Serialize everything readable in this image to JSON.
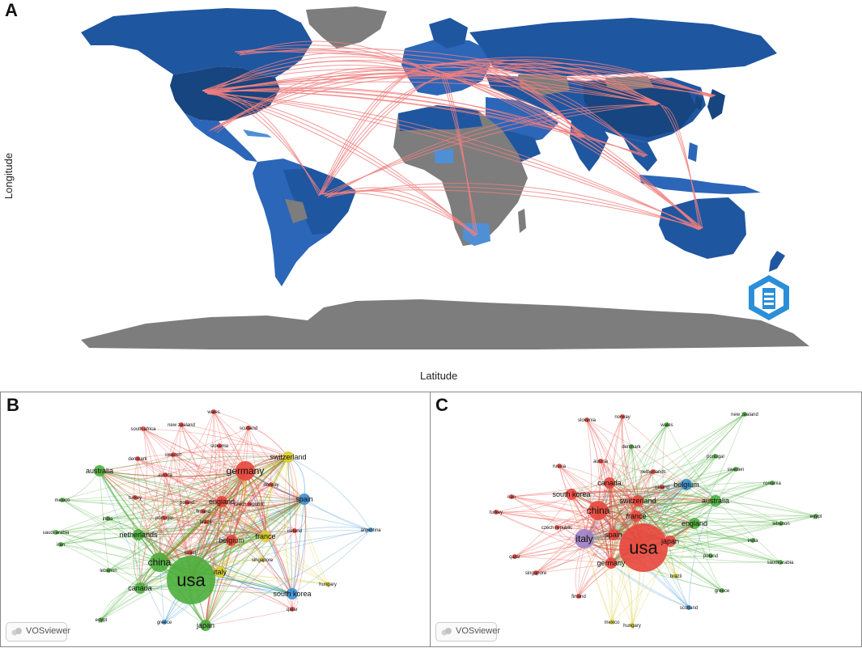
{
  "panels": {
    "a": {
      "letter": "A",
      "xlabel": "Latitude",
      "ylabel": "Longitude",
      "logo_text": "BIBLIOMETRIX"
    },
    "b": {
      "letter": "B",
      "badge": "VOSviewer",
      "nodes": [
        {
          "label": "usa",
          "cluster": "green",
          "size": "xl"
        },
        {
          "label": "china",
          "cluster": "green",
          "size": "m"
        },
        {
          "label": "germany",
          "cluster": "red",
          "size": "m"
        },
        {
          "label": "switzerland",
          "cluster": "yellow",
          "size": "s"
        },
        {
          "label": "england",
          "cluster": "red",
          "size": "s"
        },
        {
          "label": "spain",
          "cluster": "blue",
          "size": "s"
        },
        {
          "label": "france",
          "cluster": "yellow",
          "size": "s"
        },
        {
          "label": "netherlands",
          "cluster": "green",
          "size": "s"
        },
        {
          "label": "australia",
          "cluster": "green",
          "size": "s"
        },
        {
          "label": "canada",
          "cluster": "green",
          "size": "s"
        },
        {
          "label": "japan",
          "cluster": "green",
          "size": "s"
        },
        {
          "label": "italy",
          "cluster": "yellow",
          "size": "s"
        },
        {
          "label": "belgium",
          "cluster": "red",
          "size": "s"
        },
        {
          "label": "south korea",
          "cluster": "blue",
          "size": "s"
        },
        {
          "label": "argentina",
          "cluster": "blue",
          "size": "xs"
        },
        {
          "label": "hungary",
          "cluster": "yellow",
          "size": "xs"
        },
        {
          "label": "mexico",
          "cluster": "green",
          "size": "xs"
        },
        {
          "label": "saudi arabia",
          "cluster": "green",
          "size": "xs"
        },
        {
          "label": "egypt",
          "cluster": "green",
          "size": "xs"
        },
        {
          "label": "greece",
          "cluster": "blue",
          "size": "xs"
        },
        {
          "label": "india",
          "cluster": "green",
          "size": "xs"
        },
        {
          "label": "iran",
          "cluster": "green",
          "size": "xs"
        },
        {
          "label": "lebanon",
          "cluster": "green",
          "size": "xs"
        },
        {
          "label": "wales",
          "cluster": "red",
          "size": "xs"
        },
        {
          "label": "new zealand",
          "cluster": "red",
          "size": "xs"
        },
        {
          "label": "scotland",
          "cluster": "red",
          "size": "xs"
        },
        {
          "label": "south africa",
          "cluster": "red",
          "size": "xs"
        },
        {
          "label": "denmark",
          "cluster": "red",
          "size": "xs"
        },
        {
          "label": "sweden",
          "cluster": "red",
          "size": "xs"
        },
        {
          "label": "slovenia",
          "cluster": "red",
          "size": "xs"
        },
        {
          "label": "norway",
          "cluster": "red",
          "size": "xs"
        },
        {
          "label": "austria",
          "cluster": "red",
          "size": "xs"
        },
        {
          "label": "czech republic",
          "cluster": "red",
          "size": "xs"
        },
        {
          "label": "finland",
          "cluster": "red",
          "size": "xs"
        },
        {
          "label": "poland",
          "cluster": "red",
          "size": "xs"
        },
        {
          "label": "brazil",
          "cluster": "red",
          "size": "xs"
        },
        {
          "label": "portugal",
          "cluster": "red",
          "size": "xs"
        },
        {
          "label": "turkey",
          "cluster": "red",
          "size": "xs"
        },
        {
          "label": "ireland",
          "cluster": "red",
          "size": "xs"
        },
        {
          "label": "singapore",
          "cluster": "yellow",
          "size": "xs"
        },
        {
          "label": "israel",
          "cluster": "red",
          "size": "xs"
        },
        {
          "label": "qatar",
          "cluster": "red",
          "size": "xs"
        }
      ]
    },
    "c": {
      "letter": "C",
      "badge": "VOSviewer",
      "nodes": [
        {
          "label": "usa",
          "cluster": "red",
          "size": "xl"
        },
        {
          "label": "china",
          "cluster": "red",
          "size": "m"
        },
        {
          "label": "italy",
          "cluster": "purple",
          "size": "m"
        },
        {
          "label": "spain",
          "cluster": "red",
          "size": "s"
        },
        {
          "label": "germany",
          "cluster": "red",
          "size": "s"
        },
        {
          "label": "france",
          "cluster": "red",
          "size": "s"
        },
        {
          "label": "switzerland",
          "cluster": "red",
          "size": "s"
        },
        {
          "label": "belgium",
          "cluster": "blue",
          "size": "s"
        },
        {
          "label": "england",
          "cluster": "green",
          "size": "s"
        },
        {
          "label": "australia",
          "cluster": "green",
          "size": "s"
        },
        {
          "label": "canada",
          "cluster": "red",
          "size": "s"
        },
        {
          "label": "south korea",
          "cluster": "red",
          "size": "s"
        },
        {
          "label": "japan",
          "cluster": "red",
          "size": "s"
        },
        {
          "label": "new zealand",
          "cluster": "green",
          "size": "xs"
        },
        {
          "label": "egypt",
          "cluster": "green",
          "size": "xs"
        },
        {
          "label": "saudi arabia",
          "cluster": "green",
          "size": "xs"
        },
        {
          "label": "turkey",
          "cluster": "red",
          "size": "xs"
        },
        {
          "label": "iran",
          "cluster": "red",
          "size": "xs"
        },
        {
          "label": "czech republic",
          "cluster": "red",
          "size": "xs"
        },
        {
          "label": "qatar",
          "cluster": "red",
          "size": "xs"
        },
        {
          "label": "singapore",
          "cluster": "red",
          "size": "xs"
        },
        {
          "label": "finland",
          "cluster": "red",
          "size": "xs"
        },
        {
          "label": "mexico",
          "cluster": "yellow",
          "size": "xs"
        },
        {
          "label": "hungary",
          "cluster": "yellow",
          "size": "xs"
        },
        {
          "label": "scotland",
          "cluster": "blue",
          "size": "xs"
        },
        {
          "label": "greece",
          "cluster": "green",
          "size": "xs"
        },
        {
          "label": "brazil",
          "cluster": "yellow",
          "size": "xs"
        },
        {
          "label": "poland",
          "cluster": "green",
          "size": "xs"
        },
        {
          "label": "india",
          "cluster": "green",
          "size": "xs"
        },
        {
          "label": "lebanon",
          "cluster": "green",
          "size": "xs"
        },
        {
          "label": "romania",
          "cluster": "green",
          "size": "xs"
        },
        {
          "label": "sweden",
          "cluster": "green",
          "size": "xs"
        },
        {
          "label": "portugal",
          "cluster": "green",
          "size": "xs"
        },
        {
          "label": "wales",
          "cluster": "green",
          "size": "xs"
        },
        {
          "label": "denmark",
          "cluster": "green",
          "size": "xs"
        },
        {
          "label": "slovenia",
          "cluster": "red",
          "size": "xs"
        },
        {
          "label": "norway",
          "cluster": "red",
          "size": "xs"
        },
        {
          "label": "russia",
          "cluster": "red",
          "size": "xs"
        },
        {
          "label": "austria",
          "cluster": "red",
          "size": "xs"
        },
        {
          "label": "netherlands",
          "cluster": "red",
          "size": "xs"
        },
        {
          "label": "ireland",
          "cluster": "red",
          "size": "xs"
        }
      ]
    }
  },
  "colors": {
    "map_dark_blue": "#1f4f8f",
    "map_mid_blue": "#2c66b8",
    "map_light_blue": "#4f8fd6",
    "map_grey": "#7d7d7d",
    "map_link": "#f08080",
    "red": "#e8463c",
    "green": "#4cae3c",
    "blue": "#3a8fd0",
    "yellow": "#d8cc2a",
    "purple": "#9b7fc8"
  }
}
